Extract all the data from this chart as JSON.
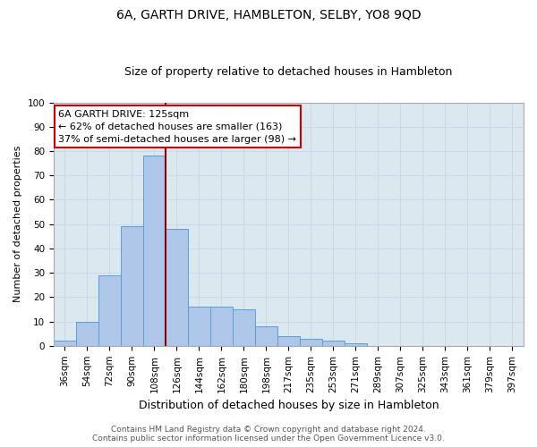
{
  "title": "6A, GARTH DRIVE, HAMBLETON, SELBY, YO8 9QD",
  "subtitle": "Size of property relative to detached houses in Hambleton",
  "xlabel": "Distribution of detached houses by size in Hambleton",
  "ylabel": "Number of detached properties",
  "bar_labels": [
    "36sqm",
    "54sqm",
    "72sqm",
    "90sqm",
    "108sqm",
    "126sqm",
    "144sqm",
    "162sqm",
    "180sqm",
    "198sqm",
    "217sqm",
    "235sqm",
    "253sqm",
    "271sqm",
    "289sqm",
    "307sqm",
    "325sqm",
    "343sqm",
    "361sqm",
    "379sqm",
    "397sqm"
  ],
  "bar_values": [
    2,
    10,
    29,
    49,
    78,
    48,
    16,
    16,
    15,
    8,
    4,
    3,
    2,
    1,
    0,
    0,
    0,
    0,
    0,
    0,
    0
  ],
  "bar_color": "#aec6e8",
  "bar_edge_color": "#5a9ed6",
  "vline_x": 4.5,
  "vline_color": "#8b0000",
  "annotation_text": "6A GARTH DRIVE: 125sqm\n← 62% of detached houses are smaller (163)\n37% of semi-detached houses are larger (98) →",
  "annotation_box_color": "#ffffff",
  "annotation_box_edge": "#cc0000",
  "ylim": [
    0,
    100
  ],
  "yticks": [
    0,
    10,
    20,
    30,
    40,
    50,
    60,
    70,
    80,
    90,
    100
  ],
  "grid_color": "#c8d8e8",
  "bg_color": "#dce8f0",
  "footer": "Contains HM Land Registry data © Crown copyright and database right 2024.\nContains public sector information licensed under the Open Government Licence v3.0.",
  "title_fontsize": 10,
  "subtitle_fontsize": 9,
  "ylabel_fontsize": 8,
  "xlabel_fontsize": 9,
  "tick_fontsize": 7.5,
  "footer_fontsize": 6.5,
  "ann_fontsize": 8
}
